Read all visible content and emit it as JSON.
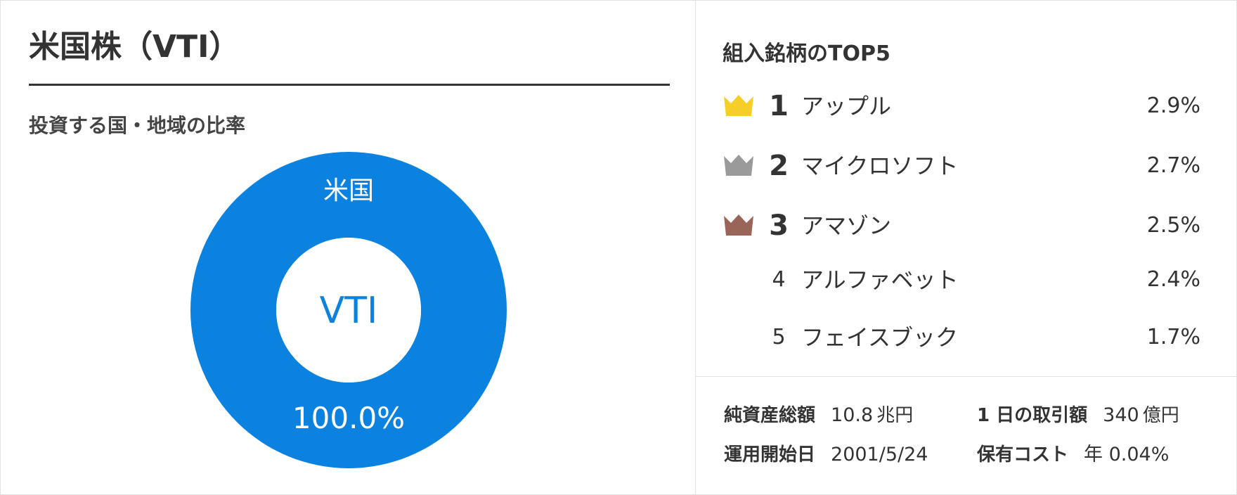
{
  "fund": {
    "title": "米国株（VTI）",
    "subtitle": "投資する国・地域の比率"
  },
  "colors": {
    "donut": "#0c82e0",
    "gold_crown": "#f5cf28",
    "silver_crown": "#9a9a9a",
    "bronze_crown": "#9a6558",
    "text": "#333333"
  },
  "chart_data": {
    "type": "pie",
    "style": "donut",
    "center_label": "VTI",
    "slices": [
      {
        "label": "米国",
        "value": 100.0,
        "value_label": "100.0%"
      }
    ]
  },
  "top_holdings": {
    "heading": "組入銘柄のTOP5",
    "items": [
      {
        "rank": "1",
        "name": "アップル",
        "weight": "2.9%",
        "crown": "gold-crown-icon"
      },
      {
        "rank": "2",
        "name": "マイクロソフト",
        "weight": "2.7%",
        "crown": "silver-crown-icon"
      },
      {
        "rank": "3",
        "name": "アマゾン",
        "weight": "2.5%",
        "crown": "bronze-crown-icon"
      },
      {
        "rank": "4",
        "name": "アルファベット",
        "weight": "2.4%",
        "crown": ""
      },
      {
        "rank": "5",
        "name": "フェイスブック",
        "weight": "1.7%",
        "crown": ""
      }
    ]
  },
  "stats": {
    "net_assets": {
      "label": "純資産総額",
      "value": "10.8",
      "unit": "兆円"
    },
    "daily_volume": {
      "label": "1 日の取引額",
      "value": "340",
      "unit": "億円"
    },
    "inception": {
      "label": "運用開始日",
      "value": "2001/5/24"
    },
    "cost": {
      "label": "保有コスト",
      "value": "年 0.04%"
    }
  }
}
